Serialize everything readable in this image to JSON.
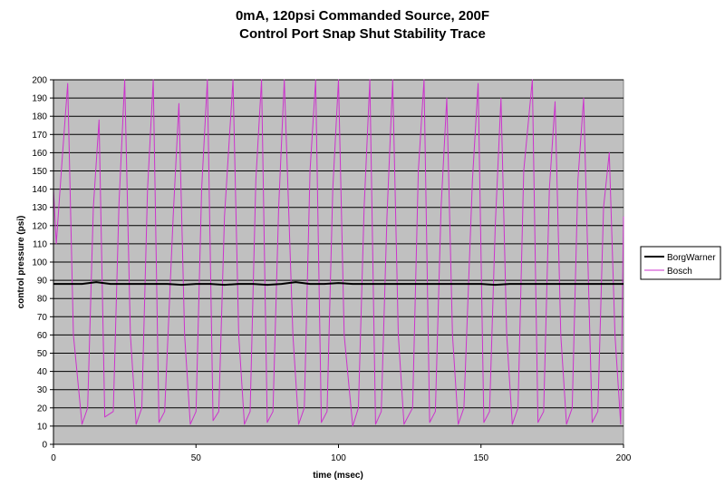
{
  "chart_data": {
    "type": "line",
    "title": [
      "0mA, 120psi Commanded Source, 200F",
      "Control Port Snap Shut Stability Trace"
    ],
    "xlabel": "time (msec)",
    "ylabel": "control pressure (psi)",
    "xlim": [
      0,
      200
    ],
    "ylim": [
      0,
      200
    ],
    "xticks": [
      0,
      50,
      100,
      150,
      200
    ],
    "yticks": [
      0,
      10,
      20,
      30,
      40,
      50,
      60,
      70,
      80,
      90,
      100,
      110,
      120,
      130,
      140,
      150,
      160,
      170,
      180,
      190,
      200
    ],
    "grid": "horizontal major gridlines",
    "plot_background": "#c0c0c0",
    "legend_position": "right",
    "series": [
      {
        "name": "BorgWarner",
        "color": "#000000",
        "x": [
          0,
          10,
          15,
          20,
          25,
          30,
          35,
          40,
          45,
          50,
          55,
          60,
          65,
          70,
          75,
          80,
          85,
          90,
          95,
          100,
          105,
          110,
          115,
          120,
          125,
          130,
          135,
          140,
          145,
          150,
          155,
          160,
          165,
          170,
          175,
          180,
          185,
          190,
          195,
          200
        ],
        "y": [
          88,
          88,
          89,
          88,
          88,
          88,
          88,
          88,
          87.5,
          88,
          88,
          87.5,
          88,
          88,
          87.5,
          88,
          89,
          88,
          88,
          88.5,
          88,
          88,
          88,
          88,
          88,
          88,
          88,
          88,
          88,
          88,
          87.5,
          88,
          88,
          88,
          88,
          88,
          88,
          88,
          88,
          88
        ]
      },
      {
        "name": "Bosch",
        "color": "#cc33cc",
        "x": [
          0,
          1,
          3,
          5,
          7,
          10,
          12,
          14,
          16,
          18,
          21,
          23,
          25,
          27,
          29,
          31,
          33,
          35,
          37,
          39,
          42,
          44,
          46,
          48,
          50,
          52,
          54,
          56,
          58,
          60,
          63,
          65,
          67,
          69,
          71,
          73,
          75,
          77,
          79,
          81,
          84,
          86,
          88,
          90,
          92,
          94,
          96,
          98,
          100,
          102,
          105,
          107,
          109,
          111,
          113,
          115,
          117,
          119,
          121,
          123,
          126,
          128,
          130,
          132,
          134,
          136,
          138,
          140,
          142,
          144,
          147,
          149,
          151,
          153,
          155,
          157,
          159,
          161,
          163,
          165,
          168,
          170,
          172,
          174,
          176,
          178,
          180,
          182,
          184,
          186,
          189,
          191,
          193,
          195,
          197,
          199,
          200
        ],
        "y": [
          140,
          110,
          155,
          198,
          60,
          11,
          20,
          130,
          178,
          15,
          18,
          132,
          200,
          60,
          11,
          20,
          140,
          200,
          12,
          18,
          125,
          187,
          60,
          11,
          18,
          140,
          200,
          13,
          18,
          125,
          200,
          60,
          11,
          18,
          145,
          200,
          12,
          18,
          130,
          200,
          60,
          11,
          20,
          150,
          200,
          12,
          18,
          140,
          200,
          60,
          10,
          20,
          130,
          200,
          11,
          18,
          125,
          200,
          60,
          11,
          20,
          150,
          200,
          12,
          18,
          130,
          190,
          60,
          11,
          20,
          145,
          198,
          12,
          18,
          120,
          190,
          60,
          11,
          20,
          150,
          200,
          12,
          18,
          140,
          188,
          60,
          11,
          20,
          145,
          190,
          12,
          18,
          130,
          160,
          60,
          11,
          125
        ]
      }
    ]
  }
}
